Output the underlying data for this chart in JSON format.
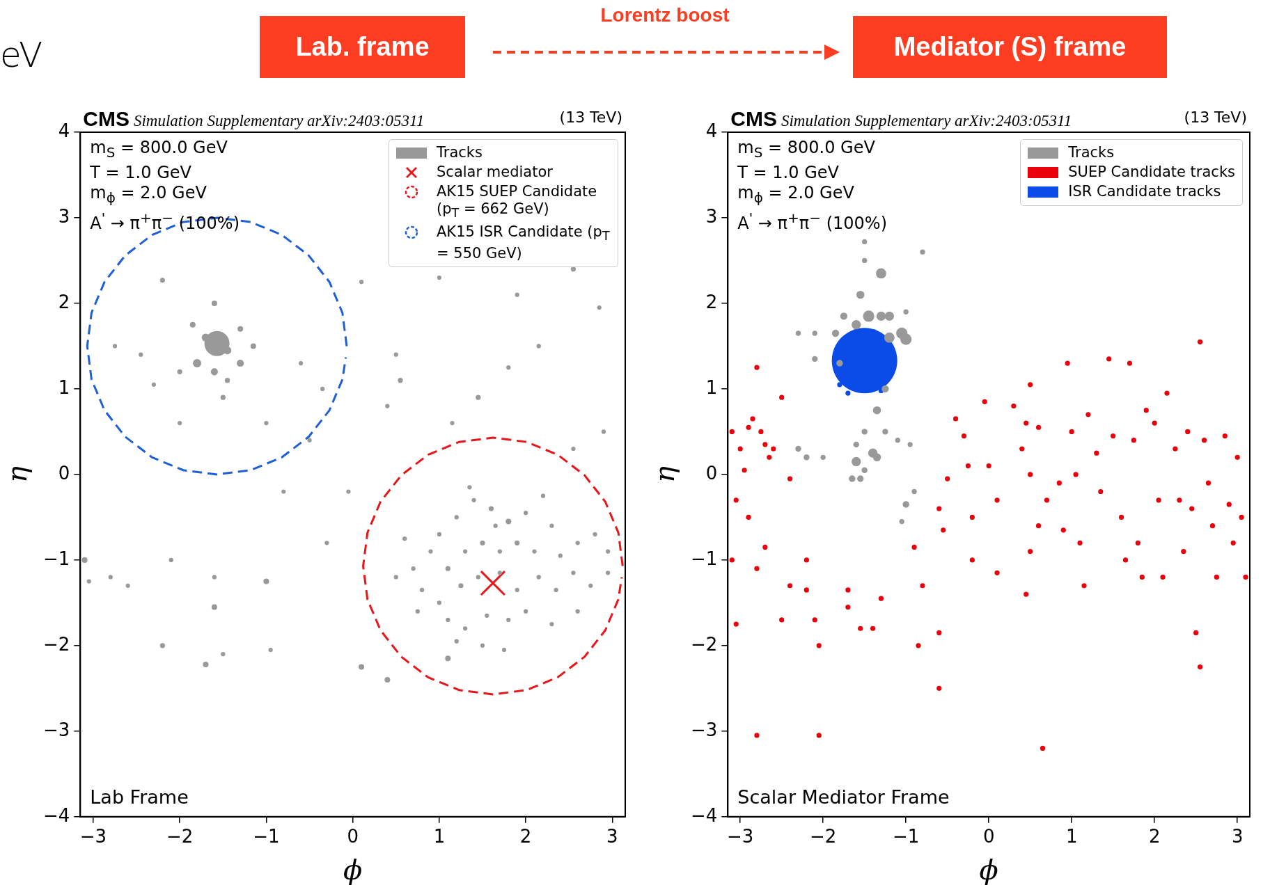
{
  "chart_data": [
    {
      "type": "other",
      "annotations": [
        "eV",
        "Lab. frame",
        "Lorentz boost",
        "Mediator (S) frame"
      ]
    },
    {
      "type": "scatter",
      "title": "CMS",
      "subtitle": "Simulation Supplementary arXiv:2403:05311",
      "xlabel": "ϕ",
      "ylabel": "η",
      "annotations": [
        "(13 TeV)",
        "m$_{S}$ = 800.0 GeV",
        "T = 1.0 GeV",
        "m$_{ϕ}$ = 2.0 GeV",
        "A$^{'}$ → π$^{+}$π$^{−}$ (100%)",
        "Lab Frame"
      ],
      "xlim": [
        -3.15,
        3.15
      ],
      "ylim": [
        -4,
        4
      ],
      "xticks": [
        {
          "value": -3,
          "label": "−3"
        },
        {
          "value": -2,
          "label": "−2"
        },
        {
          "value": -1,
          "label": "−1"
        },
        0,
        1,
        2,
        3
      ],
      "yticks": [
        {
          "value": -4,
          "label": "−4"
        },
        {
          "value": -3,
          "label": "−3"
        },
        {
          "value": -2,
          "label": "−2"
        },
        {
          "value": -1,
          "label": "−1"
        },
        0,
        1,
        2,
        3,
        4
      ],
      "grid": false,
      "legend": "top right",
      "marker": "circle",
      "series": [
        {
          "name": "Tracks",
          "type": "bubble",
          "color": "#999999",
          "x": [
            -1.57,
            -1.7,
            -1.45,
            -1.8,
            -1.3,
            -1.6,
            -1.85,
            -1.6,
            -1.3,
            -1.45,
            -2.0,
            -1.15,
            -1.5,
            -2.2,
            -2.75,
            -2.45,
            -2.3,
            -2.0,
            -1.0,
            -0.6,
            -0.5,
            -2.1,
            -2.6,
            -1.6,
            -1.6,
            -1.0,
            -2.2,
            -1.7,
            -1.5,
            -0.95,
            -3.1,
            -3.05,
            -2.8,
            -0.3,
            -0.8,
            0.1,
            0.4,
            1.1,
            0.1,
            1.0,
            1.9,
            2.55,
            2.85,
            0.5,
            0.55,
            1.45,
            1.8,
            2.15,
            1.15,
            0.4,
            2.9,
            2.55,
            -0.35,
            -0.05,
            1.4,
            1.2,
            1.6,
            1.8,
            2.0,
            2.3,
            1.0,
            0.9,
            1.1,
            1.3,
            1.5,
            1.7,
            1.9,
            2.1,
            2.4,
            2.6,
            2.8,
            2.95,
            0.7,
            0.5,
            0.8,
            1.0,
            1.25,
            1.45,
            1.7,
            1.9,
            2.15,
            2.35,
            2.55,
            2.75,
            2.95,
            1.1,
            1.3,
            1.55,
            1.8,
            2.0,
            2.3,
            2.6,
            1.5,
            1.75,
            1.2,
            0.75,
            1.65,
            2.2,
            1.35,
            0.6
          ],
          "values": [
            1.53,
            1.6,
            1.45,
            1.3,
            1.3,
            1.2,
            1.75,
            2.0,
            1.7,
            1.1,
            1.2,
            1.5,
            0.9,
            2.27,
            1.5,
            1.4,
            1.05,
            0.6,
            0.6,
            1.3,
            0.4,
            -1.0,
            -1.3,
            -1.55,
            -1.2,
            -1.25,
            -2.0,
            -2.22,
            -2.1,
            -2.05,
            -1.0,
            -1.25,
            -1.2,
            -0.8,
            -0.2,
            -2.25,
            -2.4,
            -2.15,
            2.25,
            2.3,
            2.1,
            2.4,
            1.95,
            1.4,
            1.1,
            0.9,
            1.25,
            1.5,
            0.6,
            0.8,
            0.5,
            0.3,
            1.0,
            -0.2,
            -0.3,
            -0.5,
            -0.4,
            -0.55,
            -0.45,
            -0.6,
            -0.7,
            -0.9,
            -1.1,
            -0.9,
            -0.8,
            -0.9,
            -0.8,
            -0.9,
            -0.95,
            -0.8,
            -0.7,
            -0.9,
            -1.1,
            -1.2,
            -1.35,
            -1.5,
            -1.3,
            -1.2,
            -1.15,
            -1.35,
            -1.2,
            -1.35,
            -1.15,
            -1.3,
            -1.15,
            -1.7,
            -1.8,
            -1.65,
            -1.7,
            -1.6,
            -1.75,
            -1.6,
            -2.0,
            -2.05,
            -1.95,
            -1.6,
            -0.6,
            -0.25,
            -0.15,
            -0.75
          ],
          "sizes": [
            1,
            0.1,
            0.1,
            0.11,
            0.08,
            0.08,
            0.05,
            0.05,
            0.05,
            0.04,
            0.04,
            0.05,
            0.04,
            0.04,
            0.03,
            0.03,
            0.03,
            0.03,
            0.03,
            0.03,
            0.03,
            0.03,
            0.03,
            0.05,
            0.03,
            0.05,
            0.04,
            0.05,
            0.03,
            0.03,
            0.05,
            0.03,
            0.03,
            0.03,
            0.03,
            0.05,
            0.05,
            0.05,
            0.03,
            0.03,
            0.03,
            0.04,
            0.03,
            0.03,
            0.04,
            0.04,
            0.03,
            0.03,
            0.03,
            0.03,
            0.03,
            0.03,
            0.03,
            0.03,
            0.03,
            0.03,
            0.04,
            0.05,
            0.03,
            0.03,
            0.03,
            0.03,
            0.04,
            0.03,
            0.04,
            0.03,
            0.04,
            0.03,
            0.03,
            0.03,
            0.03,
            0.03,
            0.03,
            0.03,
            0.03,
            0.03,
            0.04,
            0.03,
            0.03,
            0.03,
            0.03,
            0.03,
            0.03,
            0.03,
            0.03,
            0.03,
            0.03,
            0.03,
            0.03,
            0.03,
            0.03,
            0.03,
            0.03,
            0.03,
            0.03,
            0.03,
            0.03,
            0.03,
            0.03,
            0.03
          ]
        },
        {
          "name": "Scalar mediator",
          "type": "scatter",
          "marker": "cross",
          "color": "#e8151b",
          "x": [
            1.62
          ],
          "values": [
            -1.27
          ]
        },
        {
          "name": "AK15 SUEP Candidate (p$_{T}$ = 662 GeV)",
          "type": "line",
          "marker": "none",
          "line_style": "dashed",
          "color": "#e8151b",
          "x": [
            3.12,
            3.07,
            2.92,
            2.68,
            2.37,
            2.01,
            1.62,
            1.23,
            0.87,
            0.56,
            0.32,
            0.17,
            0.12,
            0.17,
            0.32,
            0.56,
            0.87,
            1.23,
            1.62,
            2.01,
            2.37,
            2.68,
            2.92,
            3.07,
            3.11
          ],
          "values": [
            -1.07,
            -0.68,
            -0.32,
            -0.01,
            0.23,
            0.38,
            0.43,
            0.38,
            0.23,
            -0.01,
            -0.32,
            -0.68,
            -1.07,
            -1.46,
            -1.82,
            -2.13,
            -2.37,
            -2.52,
            -2.57,
            -2.52,
            -2.37,
            -2.13,
            -1.82,
            -1.46,
            -1.2
          ]
        },
        {
          "name": "AK15 ISR Candidate (p$_{T}$ = 550 GeV)",
          "type": "line",
          "marker": "none",
          "line_style": "dashed",
          "color": "#1f5fd6",
          "x": [
            -0.07,
            -0.12,
            -0.27,
            -0.51,
            -0.82,
            -1.18,
            -1.57,
            -1.96,
            -2.32,
            -2.63,
            -2.87,
            -3.02,
            -3.07,
            -3.02,
            -2.87,
            -2.63,
            -2.32,
            -1.96,
            -1.57,
            -1.18,
            -0.82,
            -0.51,
            -0.27,
            -0.12,
            -0.08
          ],
          "values": [
            1.5,
            1.89,
            2.25,
            2.56,
            2.8,
            2.95,
            3.0,
            2.95,
            2.8,
            2.56,
            2.25,
            1.89,
            1.5,
            1.11,
            0.75,
            0.44,
            0.2,
            0.05,
            0.0,
            0.05,
            0.2,
            0.44,
            0.75,
            1.11,
            1.37
          ]
        }
      ]
    },
    {
      "type": "scatter",
      "title": "CMS",
      "subtitle": "Simulation Supplementary arXiv:2403:05311",
      "xlabel": "ϕ",
      "ylabel": "η",
      "annotations": [
        "(13 TeV)",
        "m$_{S}$ = 800.0 GeV",
        "T = 1.0 GeV",
        "m$_{ϕ}$ = 2.0 GeV",
        "A$^{'}$ → π$^{+}$π$^{−}$ (100%)",
        "Scalar Mediator Frame"
      ],
      "xlim": [
        -3.15,
        3.15
      ],
      "ylim": [
        -4,
        4
      ],
      "xticks": [
        {
          "value": -3,
          "label": "−3"
        },
        {
          "value": -2,
          "label": "−2"
        },
        {
          "value": -1,
          "label": "−1"
        },
        0,
        1,
        2,
        3
      ],
      "yticks": [
        {
          "value": -4,
          "label": "−4"
        },
        {
          "value": -3,
          "label": "−3"
        },
        {
          "value": -2,
          "label": "−2"
        },
        {
          "value": -1,
          "label": "−1"
        },
        0,
        1,
        2,
        3,
        4
      ],
      "grid": false,
      "legend": "top right",
      "marker": "circle",
      "series": [
        {
          "name": "Tracks",
          "type": "bubble",
          "color": "#999999",
          "x": [
            -1.5,
            -1.5,
            -1.3,
            -0.8,
            -1.55,
            -1.75,
            -1.45,
            -1.3,
            -1.2,
            -1.0,
            -1.6,
            -1.85,
            -2.1,
            -1.05,
            -1.0,
            -1.2,
            -2.3,
            -1.8,
            -2.1,
            -1.35,
            -1.25,
            -1.5,
            -1.6,
            -1.4,
            -1.6,
            -1.35,
            -1.5,
            -1.65,
            -1.55,
            -2.3,
            -2.2,
            -2.0,
            -1.1,
            -0.95,
            -1.0,
            -1.05,
            -0.9,
            -1.25
          ],
          "values": [
            2.72,
            2.5,
            2.35,
            2.6,
            2.1,
            1.85,
            1.85,
            1.85,
            1.85,
            1.9,
            1.75,
            1.65,
            1.65,
            1.65,
            1.58,
            1.6,
            1.65,
            1.3,
            1.35,
            0.75,
            0.5,
            0.5,
            0.35,
            0.25,
            0.15,
            0.2,
            0.05,
            -0.05,
            -0.05,
            0.3,
            0.2,
            0.2,
            0.4,
            0.35,
            -0.35,
            -0.55,
            -0.2,
            1.0
          ],
          "sizes": [
            0.006,
            0.006,
            0.025,
            0.006,
            0.015,
            0.012,
            0.03,
            0.02,
            0.02,
            0.006,
            0.02,
            0.012,
            0.006,
            0.03,
            0.03,
            0.025,
            0.006,
            0.01,
            0.008,
            0.015,
            0.008,
            0.008,
            0.008,
            0.02,
            0.02,
            0.015,
            0.008,
            0.01,
            0.01,
            0.008,
            0.008,
            0.006,
            0.006,
            0.006,
            0.01,
            0.006,
            0.006,
            0.012
          ]
        },
        {
          "name": "SUEP Candidate tracks",
          "type": "scatter",
          "color": "#e8000b",
          "x": [
            -3.1,
            -3.0,
            -2.95,
            -2.9,
            -2.85,
            -2.75,
            -2.7,
            -2.65,
            -2.8,
            -2.5,
            -2.6,
            -2.4,
            -3.05,
            -3.1,
            -3.05,
            -2.9,
            -2.7,
            -2.8,
            -2.4,
            -2.5,
            -2.2,
            -2.2,
            -2.1,
            -2.05,
            -2.8,
            -2.05,
            -1.7,
            -1.7,
            -1.55,
            -1.4,
            -1.3,
            -0.9,
            -0.85,
            -0.8,
            -0.6,
            -0.6,
            -0.5,
            -0.6,
            -0.55,
            -0.4,
            -0.3,
            -0.25,
            -0.2,
            -0.2,
            -0.05,
            0.0,
            0.1,
            0.1,
            0.3,
            0.4,
            0.45,
            0.5,
            0.6,
            0.5,
            0.6,
            0.5,
            0.45,
            0.65,
            0.7,
            0.85,
            0.9,
            0.95,
            1.0,
            1.05,
            1.1,
            1.15,
            1.2,
            1.3,
            1.35,
            1.45,
            1.5,
            1.6,
            1.65,
            1.7,
            1.75,
            1.8,
            1.85,
            1.9,
            2.0,
            2.05,
            2.1,
            2.15,
            2.25,
            2.3,
            2.35,
            2.4,
            2.45,
            2.5,
            2.55,
            2.6,
            2.65,
            2.7,
            2.75,
            2.85,
            2.9,
            2.95,
            3.0,
            3.05,
            3.1,
            2.55
          ],
          "values": [
            0.5,
            0.3,
            0.05,
            0.55,
            0.65,
            0.5,
            0.35,
            0.2,
            1.25,
            0.9,
            0.3,
            -0.05,
            -0.3,
            -1.0,
            -1.75,
            -0.5,
            -0.85,
            -1.1,
            -1.3,
            -1.7,
            -1.0,
            -1.35,
            -1.7,
            -2.0,
            -3.05,
            -3.05,
            -1.35,
            -1.55,
            -1.8,
            -1.8,
            -1.45,
            -0.85,
            -2.0,
            -1.3,
            -1.85,
            -2.5,
            -0.05,
            -0.4,
            -0.65,
            0.65,
            0.45,
            0.1,
            -0.5,
            -1.0,
            0.85,
            0.1,
            -0.3,
            -1.15,
            0.8,
            0.3,
            0.6,
            1.05,
            0.55,
            0.0,
            -0.6,
            -0.9,
            -1.4,
            -3.2,
            -0.3,
            -0.1,
            -0.65,
            1.3,
            0.5,
            0.0,
            -0.8,
            -1.3,
            0.7,
            0.25,
            -0.2,
            1.35,
            0.45,
            -0.5,
            -1.0,
            1.3,
            0.4,
            -0.8,
            -1.2,
            0.75,
            0.6,
            -0.3,
            -1.2,
            0.95,
            0.3,
            -0.3,
            -0.9,
            0.5,
            -0.4,
            -1.85,
            -2.25,
            0.4,
            -0.1,
            -0.6,
            -1.2,
            0.45,
            -0.35,
            -0.8,
            0.2,
            -0.5,
            -1.2,
            1.55
          ]
        },
        {
          "name": "ISR Candidate tracks",
          "type": "bubble",
          "color": "#0b4be8",
          "x": [
            -1.5,
            -1.8,
            -1.7,
            -1.3
          ],
          "values": [
            1.33,
            1.05,
            0.95,
            0.98
          ],
          "sizes": [
            1,
            0.006,
            0.006,
            0.006
          ]
        }
      ]
    }
  ]
}
